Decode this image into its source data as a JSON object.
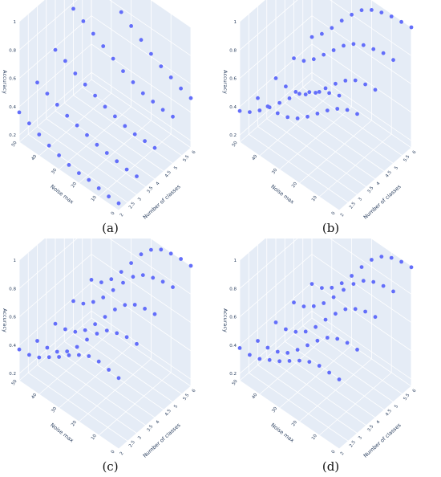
{
  "theme": {
    "pane": "#e5ecf6",
    "grid": "#ffffff",
    "marker": "#636efa"
  },
  "chart_data": [
    {
      "type": "scatter3d",
      "caption": "(a)",
      "axes": {
        "x": "Number of classes",
        "y": "Noise max",
        "z": "Accuracy"
      },
      "xticks": [
        "2",
        "2.5",
        "3",
        "3.5",
        "4",
        "4.5",
        "5",
        "5.5",
        "6"
      ],
      "yticks": [
        "0",
        "10",
        "20",
        "30",
        "40",
        "50"
      ],
      "zticks": [
        "0.2",
        "0.4",
        "0.6",
        "0.8",
        "1"
      ],
      "xlim": [
        2,
        6
      ],
      "ylim": [
        0,
        50
      ],
      "zlim": [
        0.15,
        1
      ],
      "series": [
        {
          "x": 2,
          "y": [
            0,
            5,
            10,
            15,
            20,
            25,
            30,
            35,
            40,
            45,
            50
          ],
          "z": [
            0.2,
            0.2,
            0.21,
            0.22,
            0.22,
            0.23,
            0.25,
            0.27,
            0.3,
            0.33,
            0.36
          ]
        },
        {
          "x": 3,
          "y": [
            0,
            5,
            10,
            15,
            20,
            25,
            30,
            35,
            40,
            45,
            50
          ],
          "z": [
            0.28,
            0.28,
            0.29,
            0.3,
            0.31,
            0.33,
            0.35,
            0.37,
            0.4,
            0.43,
            0.46
          ]
        },
        {
          "x": 4,
          "y": [
            0,
            5,
            10,
            15,
            20,
            25,
            30,
            35,
            40,
            45,
            50
          ],
          "z": [
            0.37,
            0.37,
            0.37,
            0.38,
            0.4,
            0.42,
            0.45,
            0.48,
            0.51,
            0.55,
            0.58
          ]
        },
        {
          "x": 5,
          "y": [
            0,
            5,
            10,
            15,
            20,
            25,
            30,
            35,
            40,
            45,
            50
          ],
          "z": [
            0.48,
            0.48,
            0.49,
            0.5,
            0.53,
            0.56,
            0.6,
            0.64,
            0.68,
            0.72,
            0.76
          ]
        },
        {
          "x": 6,
          "y": [
            0,
            5,
            10,
            15,
            20,
            25,
            30,
            35,
            40,
            45,
            50
          ],
          "z": [
            0.5,
            0.52,
            0.55,
            0.58,
            0.62,
            0.67,
            0.72,
            0.77,
            0.83,
            0.89,
            0.95
          ]
        }
      ]
    },
    {
      "type": "scatter3d",
      "caption": "(b)",
      "axes": {
        "x": "Number of classes",
        "y": "Noise max",
        "z": "Accuracy"
      },
      "xticks": [
        "2",
        "2.5",
        "3",
        "3.5",
        "4",
        "4.5",
        "5",
        "5.5",
        "6"
      ],
      "yticks": [
        "0",
        "10",
        "20",
        "30",
        "40",
        "50"
      ],
      "zticks": [
        "0.2",
        "0.4",
        "0.6",
        "0.8",
        "1"
      ],
      "xlim": [
        2,
        6
      ],
      "ylim": [
        0,
        50
      ],
      "zlim": [
        0.15,
        1
      ],
      "series": [
        {
          "x": 2,
          "y": [
            0,
            5,
            10,
            15,
            20,
            25,
            30,
            35,
            40,
            45,
            50
          ],
          "z": [
            0.96,
            0.93,
            0.89,
            0.84,
            0.78,
            0.7,
            0.62,
            0.54,
            0.47,
            0.41,
            0.37
          ]
        },
        {
          "x": 3,
          "y": [
            0,
            5,
            10,
            15,
            20,
            25,
            30,
            35,
            40,
            45,
            50
          ],
          "z": [
            0.72,
            0.7,
            0.66,
            0.6,
            0.53,
            0.46,
            0.4,
            0.36,
            0.34,
            0.34,
            0.35
          ]
        },
        {
          "x": 4,
          "y": [
            0,
            5,
            10,
            15,
            20,
            25,
            30,
            35,
            40,
            45,
            50
          ],
          "z": [
            0.78,
            0.77,
            0.75,
            0.7,
            0.63,
            0.55,
            0.47,
            0.41,
            0.38,
            0.37,
            0.38
          ]
        },
        {
          "x": 5,
          "y": [
            0,
            5,
            10,
            15,
            20,
            25,
            30,
            35,
            40,
            45,
            50
          ],
          "z": [
            0.88,
            0.88,
            0.86,
            0.84,
            0.8,
            0.74,
            0.66,
            0.58,
            0.5,
            0.44,
            0.41
          ]
        },
        {
          "x": 6,
          "y": [
            0,
            5,
            10,
            15,
            20,
            25,
            30,
            35,
            40,
            45,
            50
          ],
          "z": [
            1.0,
            0.99,
            0.98,
            0.96,
            0.93,
            0.88,
            0.8,
            0.71,
            0.61,
            0.52,
            0.45
          ]
        }
      ]
    },
    {
      "type": "scatter3d",
      "caption": "(c)",
      "axes": {
        "x": "Number of classes",
        "y": "Noise max",
        "z": "Accuracy"
      },
      "xticks": [
        "2",
        "2.5",
        "3",
        "3.5",
        "4",
        "4.5",
        "5",
        "5.5",
        "6"
      ],
      "yticks": [
        "0",
        "10",
        "20",
        "30",
        "40",
        "50"
      ],
      "zticks": [
        "0.2",
        "0.4",
        "0.6",
        "0.8",
        "1"
      ],
      "xlim": [
        2,
        6
      ],
      "ylim": [
        0,
        50
      ],
      "zlim": [
        0.15,
        1
      ],
      "series": [
        {
          "x": 2,
          "y": [
            0,
            5,
            10,
            15,
            20,
            25,
            30,
            35,
            40,
            45,
            50
          ],
          "z": [
            0.65,
            0.66,
            0.67,
            0.66,
            0.62,
            0.57,
            0.51,
            0.46,
            0.41,
            0.38,
            0.37
          ]
        },
        {
          "x": 3,
          "y": [
            0,
            5,
            10,
            15,
            20,
            25,
            30,
            35,
            40,
            45,
            50
          ],
          "z": [
            0.78,
            0.78,
            0.76,
            0.73,
            0.66,
            0.57,
            0.47,
            0.39,
            0.34,
            0.32,
            0.32
          ]
        },
        {
          "x": 4,
          "y": [
            0,
            5,
            10,
            15,
            20,
            25,
            30,
            35,
            40,
            45,
            50
          ],
          "z": [
            0.88,
            0.87,
            0.85,
            0.8,
            0.72,
            0.62,
            0.52,
            0.43,
            0.37,
            0.34,
            0.33
          ]
        },
        {
          "x": 5,
          "y": [
            0,
            5,
            10,
            15,
            20,
            25,
            30,
            35,
            40,
            45,
            50
          ],
          "z": [
            0.96,
            0.95,
            0.93,
            0.9,
            0.84,
            0.75,
            0.65,
            0.55,
            0.47,
            0.41,
            0.38
          ]
        },
        {
          "x": 6,
          "y": [
            0,
            5,
            10,
            15,
            20,
            25,
            30,
            35,
            40,
            45,
            50
          ],
          "z": [
            1.0,
            1.0,
            0.99,
            0.97,
            0.92,
            0.84,
            0.73,
            0.62,
            0.52,
            0.45,
            0.42
          ]
        }
      ]
    },
    {
      "type": "scatter3d",
      "caption": "(d)",
      "axes": {
        "x": "Number of classes",
        "y": "Noise max",
        "z": "Accuracy"
      },
      "xticks": [
        "2",
        "2.5",
        "3",
        "3.5",
        "4",
        "4.5",
        "5",
        "5.5",
        "6"
      ],
      "yticks": [
        "0",
        "10",
        "20",
        "30",
        "40",
        "50"
      ],
      "zticks": [
        "0.2",
        "0.4",
        "0.6",
        "0.8",
        "1"
      ],
      "xlim": [
        2,
        6
      ],
      "ylim": [
        0,
        50
      ],
      "zlim": [
        0.15,
        1
      ],
      "series": [
        {
          "x": 2,
          "y": [
            0,
            5,
            10,
            15,
            20,
            25,
            30,
            35,
            40,
            45,
            50
          ],
          "z": [
            0.64,
            0.64,
            0.64,
            0.62,
            0.58,
            0.53,
            0.48,
            0.44,
            0.4,
            0.38,
            0.38
          ]
        },
        {
          "x": 3,
          "y": [
            0,
            5,
            10,
            15,
            20,
            25,
            30,
            35,
            40,
            45,
            50
          ],
          "z": [
            0.74,
            0.74,
            0.72,
            0.68,
            0.61,
            0.53,
            0.45,
            0.38,
            0.34,
            0.32,
            0.32
          ]
        },
        {
          "x": 4,
          "y": [
            0,
            5,
            10,
            15,
            20,
            25,
            30,
            35,
            40,
            45,
            50
          ],
          "z": [
            0.86,
            0.85,
            0.82,
            0.77,
            0.69,
            0.6,
            0.5,
            0.42,
            0.37,
            0.34,
            0.34
          ]
        },
        {
          "x": 5,
          "y": [
            0,
            5,
            10,
            15,
            20,
            25,
            30,
            35,
            40,
            45,
            50
          ],
          "z": [
            0.93,
            0.92,
            0.9,
            0.86,
            0.79,
            0.7,
            0.6,
            0.51,
            0.44,
            0.39,
            0.37
          ]
        },
        {
          "x": 6,
          "y": [
            0,
            5,
            10,
            15,
            20,
            25,
            30,
            35,
            40,
            45,
            50
          ],
          "z": [
            0.99,
            0.98,
            0.96,
            0.92,
            0.85,
            0.75,
            0.64,
            0.54,
            0.46,
            0.41,
            0.39
          ]
        }
      ]
    }
  ]
}
